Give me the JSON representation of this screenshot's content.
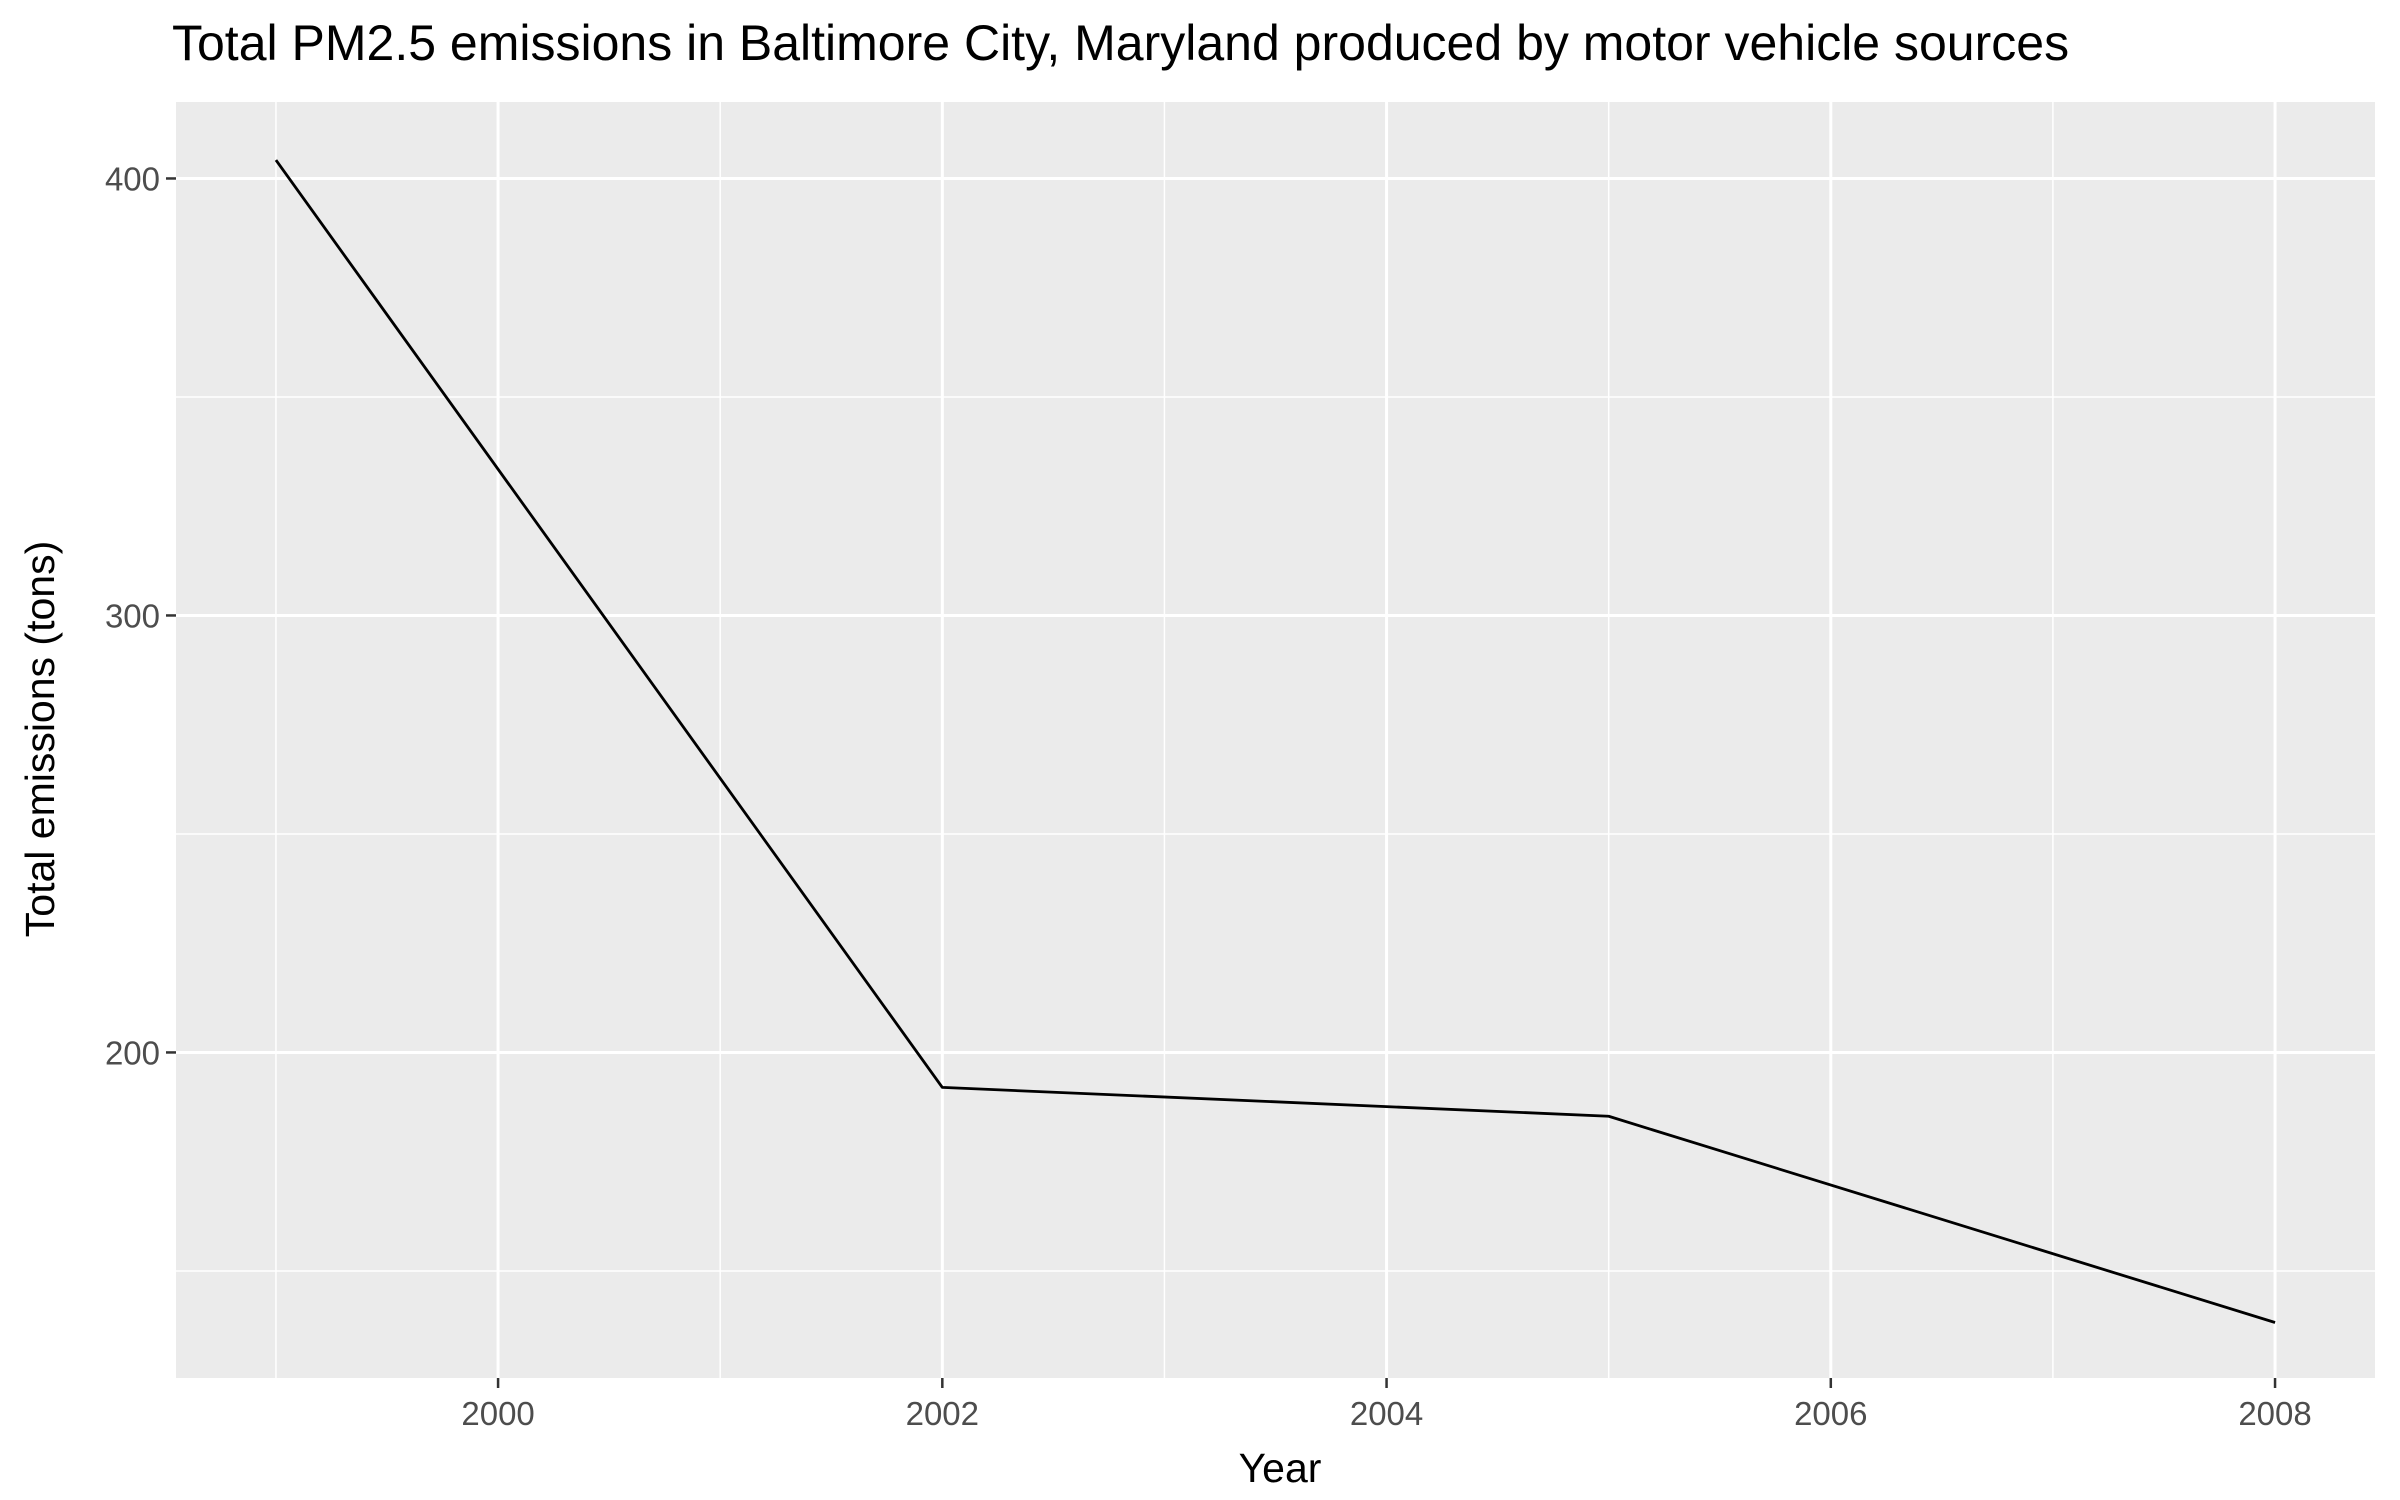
{
  "chart_data": {
    "type": "line",
    "title": "Total PM2.5 emissions in Baltimore City, Maryland produced by motor vehicle sources",
    "xlabel": "Year",
    "ylabel": "Total emissions (tons)",
    "x": [
      1999,
      2002,
      2005,
      2008
    ],
    "series": [
      {
        "values": [
          404.2,
          192.0,
          185.4,
          138.2
        ]
      }
    ],
    "xlim": [
      1998.55,
      2008.45
    ],
    "ylim": [
      125.5,
      417.5
    ],
    "x_ticks": [
      2000,
      2002,
      2004,
      2006,
      2008
    ],
    "x_tick_labels": [
      "2000",
      "2002",
      "2004",
      "2006",
      "2008"
    ],
    "y_ticks": [
      200,
      300,
      400
    ],
    "y_tick_labels": [
      "200",
      "300",
      "400"
    ],
    "x_minor_ticks": [
      1999,
      2001,
      2003,
      2005,
      2007
    ],
    "y_minor_ticks": [
      150,
      250,
      350
    ],
    "grid": true,
    "legend": "none",
    "colors": {
      "panel_background": "#ebebeb",
      "grid_line": "#ffffff",
      "series_line": "#000000",
      "tick_text": "#4d4d4d",
      "tick_mark": "#333333"
    }
  }
}
